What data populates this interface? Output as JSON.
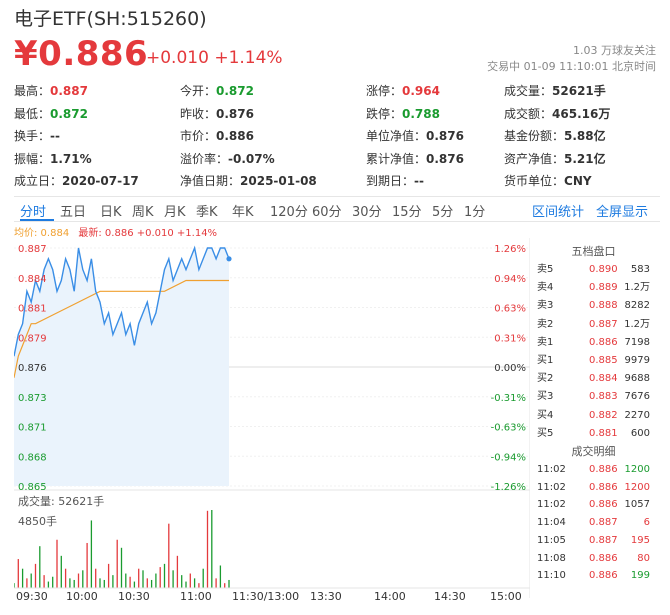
{
  "header": {
    "title": "电子ETF(SH:515260)",
    "price": "¥0.886",
    "change": "+0.010",
    "change_pct": "+1.14%",
    "followers": "1.03 万球友关注",
    "status": "交易中 01-09 11:10:01 北京时间"
  },
  "stats": [
    {
      "label": "最高：",
      "value": "0.887",
      "color": "red"
    },
    {
      "label": "今开：",
      "value": "0.872",
      "color": "green"
    },
    {
      "label": "涨停：",
      "value": "0.964",
      "color": "red"
    },
    {
      "label": "成交量：",
      "value": "52621手",
      "color": ""
    },
    {
      "label": "最低：",
      "value": "0.872",
      "color": "green"
    },
    {
      "label": "昨收：",
      "value": "0.876",
      "color": ""
    },
    {
      "label": "跌停：",
      "value": "0.788",
      "color": "green"
    },
    {
      "label": "成交额：",
      "value": "465.16万",
      "color": ""
    },
    {
      "label": "换手：",
      "value": "--",
      "color": ""
    },
    {
      "label": "市价：",
      "value": "0.886",
      "color": ""
    },
    {
      "label": "单位净值：",
      "value": "0.876",
      "color": ""
    },
    {
      "label": "基金份额：",
      "value": "5.88亿",
      "color": ""
    },
    {
      "label": "振幅：",
      "value": "1.71%",
      "color": ""
    },
    {
      "label": "溢价率：",
      "value": "-0.07%",
      "color": ""
    },
    {
      "label": "累计净值：",
      "value": "0.876",
      "color": ""
    },
    {
      "label": "资产净值：",
      "value": "5.21亿",
      "color": ""
    },
    {
      "label": "成立日：",
      "value": "2020-07-17",
      "color": ""
    },
    {
      "label": "净值日期：",
      "value": "2025-01-08",
      "color": ""
    },
    {
      "label": "到期日：",
      "value": "--",
      "color": ""
    },
    {
      "label": "货币单位：",
      "value": "CNY",
      "color": ""
    }
  ],
  "tabs": [
    "分时",
    "五日",
    "日K",
    "周K",
    "月K",
    "季K",
    "年K",
    "120分",
    "60分",
    "30分",
    "15分",
    "5分",
    "1分"
  ],
  "tabs_right": [
    "区间统计",
    "全屏显示"
  ],
  "legend": {
    "avg": "均价: 0.884",
    "latest": "最新: 0.886 +0.010 +1.14%"
  },
  "y_left": [
    "0.887",
    "0.884",
    "0.881",
    "0.879",
    "0.876",
    "0.873",
    "0.871",
    "0.868",
    "0.865"
  ],
  "y_right": [
    "1.26%",
    "0.94%",
    "0.63%",
    "0.31%",
    "0.00%",
    "-0.31%",
    "-0.63%",
    "-0.94%",
    "-1.26%"
  ],
  "x_ticks": [
    "09:30",
    "10:00",
    "10:30",
    "11:00",
    "11:30/13:00",
    "13:30",
    "14:00",
    "14:30",
    "15:00"
  ],
  "volume": {
    "label": "成交量: 52621手",
    "max": "4850手"
  },
  "orderbook_title": "五档盘口",
  "orderbook": [
    {
      "label": "卖5",
      "price": "0.890",
      "vol": "583"
    },
    {
      "label": "卖4",
      "price": "0.889",
      "vol": "1.2万"
    },
    {
      "label": "卖3",
      "price": "0.888",
      "vol": "8282"
    },
    {
      "label": "卖2",
      "price": "0.887",
      "vol": "1.2万"
    },
    {
      "label": "卖1",
      "price": "0.886",
      "vol": "7198"
    },
    {
      "label": "买1",
      "price": "0.885",
      "vol": "9979"
    },
    {
      "label": "买2",
      "price": "0.884",
      "vol": "9688"
    },
    {
      "label": "买3",
      "price": "0.883",
      "vol": "7676"
    },
    {
      "label": "买4",
      "price": "0.882",
      "vol": "2270"
    },
    {
      "label": "买5",
      "price": "0.881",
      "vol": "600"
    }
  ],
  "trades_title": "成交明细",
  "trades": [
    {
      "time": "11:02",
      "price": "0.886",
      "vol": "1200",
      "dir": "green"
    },
    {
      "time": "11:02",
      "price": "0.886",
      "vol": "1200",
      "dir": "red"
    },
    {
      "time": "11:02",
      "price": "0.886",
      "vol": "1057",
      "dir": ""
    },
    {
      "time": "11:04",
      "price": "0.887",
      "vol": "6",
      "dir": "red"
    },
    {
      "time": "11:05",
      "price": "0.887",
      "vol": "195",
      "dir": "red"
    },
    {
      "time": "11:08",
      "price": "0.886",
      "vol": "80",
      "dir": "red"
    },
    {
      "time": "11:10",
      "price": "0.886",
      "vol": "199",
      "dir": "green"
    }
  ],
  "colors": {
    "up": "#e4393c",
    "down": "#1a9b2f",
    "price_line": "#3a8ee6",
    "avg_line": "#f0a030",
    "fill": "#eaf3fc",
    "accent": "#1e7be0"
  },
  "chart_data": {
    "type": "line",
    "title": "",
    "ylim": [
      0.865,
      0.887
    ],
    "series": [
      {
        "name": "最新",
        "x": [
          "09:30",
          "09:32",
          "09:34",
          "09:36",
          "09:38",
          "09:40",
          "09:42",
          "09:44",
          "09:46",
          "09:48",
          "09:50",
          "09:52",
          "09:54",
          "09:56",
          "09:58",
          "10:00",
          "10:02",
          "10:04",
          "10:06",
          "10:08",
          "10:10",
          "10:12",
          "10:14",
          "10:16",
          "10:18",
          "10:20",
          "10:22",
          "10:24",
          "10:26",
          "10:28",
          "10:30",
          "10:32",
          "10:34",
          "10:36",
          "10:38",
          "10:40",
          "10:42",
          "10:44",
          "10:46",
          "10:48",
          "10:50",
          "10:52",
          "10:54",
          "10:56",
          "10:58",
          "11:00",
          "11:02",
          "11:04",
          "11:06",
          "11:08",
          "11:10"
        ],
        "y": [
          0.877,
          0.879,
          0.88,
          0.883,
          0.882,
          0.884,
          0.883,
          0.885,
          0.886,
          0.885,
          0.883,
          0.884,
          0.886,
          0.885,
          0.883,
          0.887,
          0.885,
          0.884,
          0.886,
          0.883,
          0.882,
          0.88,
          0.881,
          0.879,
          0.88,
          0.881,
          0.879,
          0.88,
          0.878,
          0.88,
          0.881,
          0.882,
          0.88,
          0.881,
          0.883,
          0.885,
          0.886,
          0.884,
          0.885,
          0.886,
          0.885,
          0.886,
          0.887,
          0.885,
          0.886,
          0.887,
          0.887,
          0.886,
          0.887,
          0.887,
          0.886
        ]
      },
      {
        "name": "均价",
        "x": [
          "09:30",
          "09:32",
          "09:34",
          "09:36",
          "09:38",
          "09:40",
          "09:50",
          "10:00",
          "10:10",
          "10:20",
          "10:30",
          "10:40",
          "10:50",
          "11:00",
          "11:10"
        ],
        "y": [
          0.875,
          0.877,
          0.878,
          0.879,
          0.88,
          0.88,
          0.881,
          0.882,
          0.883,
          0.883,
          0.883,
          0.883,
          0.884,
          0.884,
          0.884
        ]
      }
    ],
    "volume_bars": [
      300,
      1800,
      1200,
      600,
      900,
      1500,
      2600,
      800,
      400,
      700,
      3000,
      2000,
      1200,
      600,
      500,
      900,
      1100,
      2800,
      4200,
      1200,
      600,
      500,
      1500,
      800,
      3000,
      2500,
      900,
      700,
      400,
      1200,
      1100,
      600,
      500,
      900,
      1300,
      1500,
      4000,
      1100,
      2000,
      800,
      400,
      900,
      600,
      300,
      1200,
      4800,
      4850,
      600,
      1400,
      300,
      500
    ],
    "volume_colors": [
      "g",
      "r",
      "g",
      "r",
      "g",
      "r",
      "g",
      "r",
      "g",
      "g",
      "r",
      "g",
      "r",
      "g",
      "g",
      "r",
      "g",
      "r",
      "g",
      "r",
      "g",
      "g",
      "r",
      "g",
      "r",
      "g",
      "g",
      "r",
      "g",
      "r",
      "g",
      "r",
      "g",
      "g",
      "r",
      "g",
      "r",
      "g",
      "r",
      "g",
      "g",
      "r",
      "g",
      "r",
      "g",
      "r",
      "g",
      "r",
      "g",
      "r",
      "g"
    ]
  }
}
